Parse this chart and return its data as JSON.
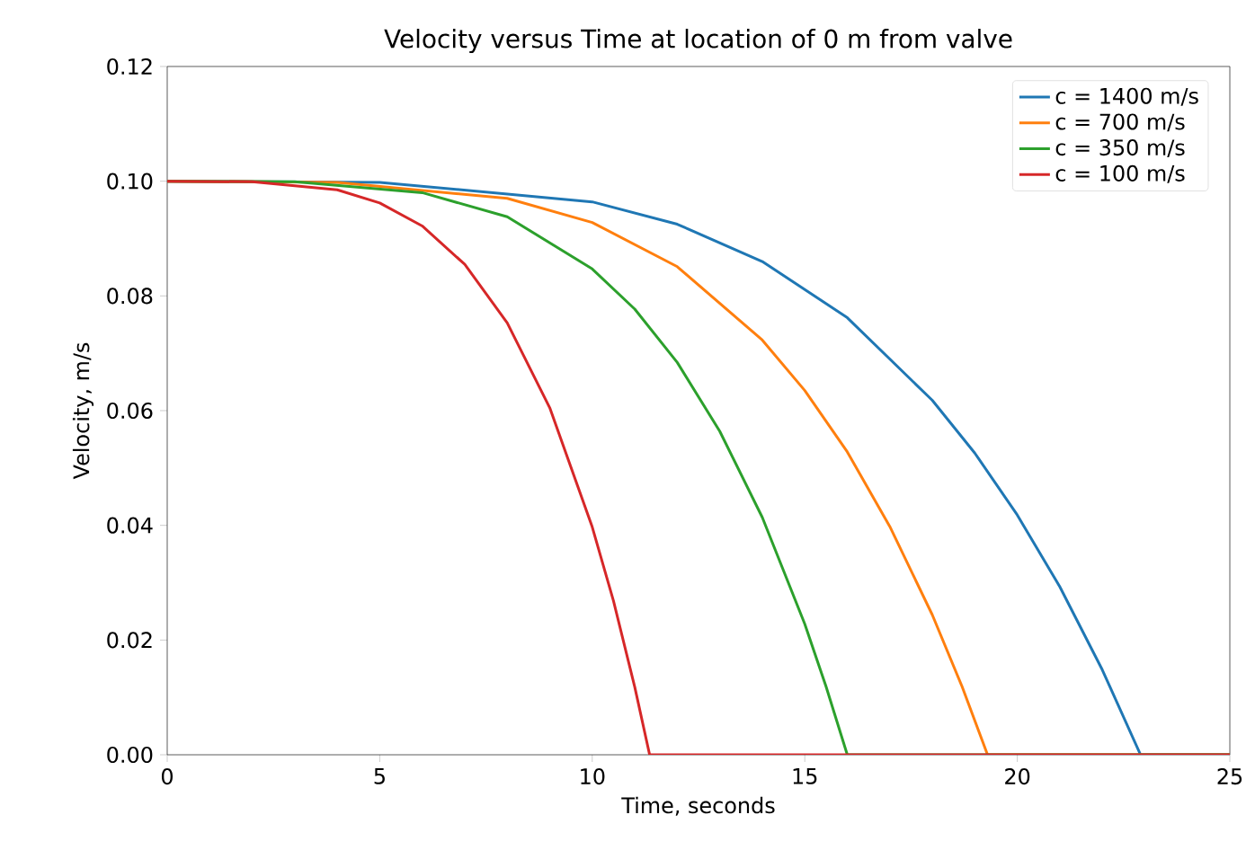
{
  "chart_data": {
    "type": "line",
    "title": "Velocity versus Time at location of 0 m from valve",
    "xlabel": "Time, seconds",
    "ylabel": "Velocity, m/s",
    "xlim": [
      0,
      25
    ],
    "ylim": [
      0,
      0.12
    ],
    "xticks": [
      0,
      5,
      10,
      15,
      20,
      25
    ],
    "yticks": [
      {
        "value": 0,
        "label": "0.00"
      },
      {
        "value": 0.02,
        "label": "0.02"
      },
      {
        "value": 0.04,
        "label": "0.04"
      },
      {
        "value": 0.06,
        "label": "0.06"
      },
      {
        "value": 0.08,
        "label": "0.08"
      },
      {
        "value": 0.1,
        "label": "0.10"
      },
      {
        "value": 0.12,
        "label": "0.12"
      }
    ],
    "grid": false,
    "legend": "top right",
    "marker": "none",
    "line_style": "solid",
    "series": [
      {
        "name": "c = 1400 m/s",
        "color": "#1f77b4",
        "x": [
          0,
          5,
          10,
          12,
          14,
          16,
          18,
          19,
          20,
          21,
          22,
          22.9,
          25
        ],
        "values": [
          0.1,
          0.0998,
          0.0964,
          0.0925,
          0.086,
          0.0762,
          0.0618,
          0.0526,
          0.0418,
          0.0293,
          0.0148,
          0,
          0
        ]
      },
      {
        "name": "c = 700 m/s",
        "color": "#ff7f0e",
        "x": [
          0,
          4,
          8,
          10,
          12,
          14,
          15,
          16,
          17,
          18,
          18.7,
          19.3,
          25
        ],
        "values": [
          0.1,
          0.0998,
          0.097,
          0.0928,
          0.0851,
          0.0723,
          0.0635,
          0.0528,
          0.0398,
          0.0244,
          0.0119,
          0,
          0
        ]
      },
      {
        "name": "c = 350 m/s",
        "color": "#2ca02c",
        "x": [
          0,
          3,
          6,
          8,
          10,
          11,
          12,
          13,
          14,
          15,
          15.5,
          16,
          25
        ],
        "values": [
          0.1,
          0.0999,
          0.098,
          0.0938,
          0.0847,
          0.0777,
          0.0684,
          0.0564,
          0.0414,
          0.0228,
          0.0119,
          0,
          0
        ]
      },
      {
        "name": "c = 100 m/s",
        "color": "#d62728",
        "x": [
          0,
          2,
          4,
          5,
          6,
          7,
          8,
          9,
          10,
          10.5,
          11,
          11.35,
          25
        ],
        "values": [
          0.1,
          0.0999,
          0.0985,
          0.0962,
          0.0922,
          0.0855,
          0.0753,
          0.0605,
          0.0397,
          0.0268,
          0.0118,
          0,
          0
        ]
      }
    ]
  }
}
